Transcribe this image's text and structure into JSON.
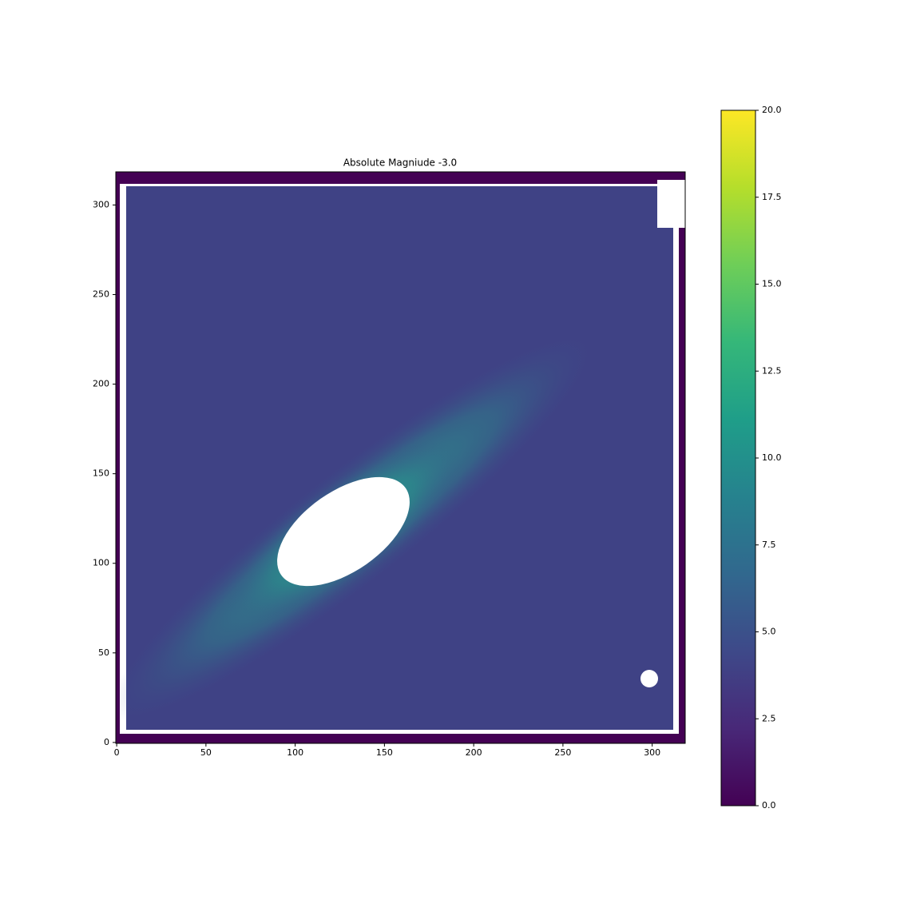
{
  "chart_data": {
    "type": "image",
    "title": "Absolute Magniude -3.0",
    "xlim": [
      -0.5,
      318.5
    ],
    "ylim": [
      -0.5,
      318.5
    ],
    "xticks": [
      0,
      50,
      100,
      150,
      200,
      250,
      300
    ],
    "yticks": [
      0,
      50,
      100,
      150,
      200,
      250,
      300
    ],
    "colormap": "viridis",
    "clim": [
      0,
      20
    ],
    "colorbar_ticks": [
      {
        "value": 0,
        "label": "0.0"
      },
      2.5,
      {
        "value": 5,
        "label": "5.0"
      },
      7.5,
      {
        "value": 10,
        "label": "10.0"
      },
      12.5,
      {
        "value": 15,
        "label": "15.0"
      },
      17.5,
      {
        "value": 20,
        "label": "20.0"
      }
    ]
  }
}
